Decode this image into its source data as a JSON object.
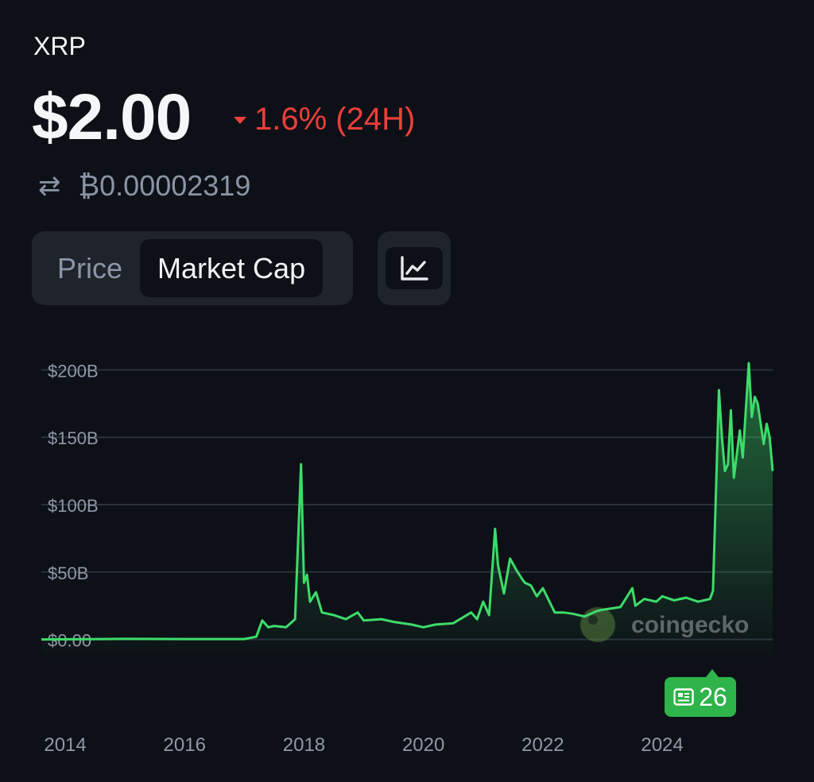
{
  "header": {
    "symbol": "XRP",
    "price": "$2.00",
    "change": "1.6% (24H)",
    "change_direction": "down",
    "btc_price": "₿0.00002319"
  },
  "tabs": [
    {
      "label": "Price",
      "active": false
    },
    {
      "label": "Market Cap",
      "active": true
    }
  ],
  "chart_type_button": {
    "icon": "line-chart-icon"
  },
  "watermark": "coingecko",
  "news_badge": {
    "icon": "newspaper-icon",
    "count": "26"
  },
  "colors": {
    "background": "#0d1117",
    "line": "#3ddc6a",
    "negative": "#ee3f3a",
    "badge": "#2fb34b"
  },
  "chart_data": {
    "type": "area",
    "title": "",
    "xlabel": "",
    "ylabel": "",
    "y_unit": "USD market cap (billions)",
    "ylim": [
      -15,
      215
    ],
    "y_ticks": [
      0,
      50,
      100,
      150,
      200
    ],
    "y_tick_labels": [
      "$0.00",
      "$50B",
      "$100B",
      "$150B",
      "$200B"
    ],
    "x_ticks": [
      2014,
      2016,
      2018,
      2020,
      2022,
      2024
    ],
    "x_tick_labels": [
      "2014",
      "2016",
      "2018",
      "2020",
      "2022",
      "2024"
    ],
    "xlim": [
      2013.6,
      2025.85
    ],
    "grid": true,
    "series": [
      {
        "x": [
          2013.6,
          2015.0,
          2016.0,
          2017.0,
          2017.2,
          2017.3,
          2017.4,
          2017.5,
          2017.7,
          2017.85,
          2017.95,
          2018.0,
          2018.05,
          2018.1,
          2018.2,
          2018.3,
          2018.5,
          2018.7,
          2018.9,
          2019.0,
          2019.3,
          2019.5,
          2019.8,
          2020.0,
          2020.2,
          2020.5,
          2020.8,
          2020.9,
          2021.0,
          2021.1,
          2021.2,
          2021.25,
          2021.35,
          2021.45,
          2021.55,
          2021.65,
          2021.7,
          2021.8,
          2021.9,
          2022.0,
          2022.2,
          2022.35,
          2022.5,
          2022.7,
          2022.9,
          2023.0,
          2023.3,
          2023.5,
          2023.55,
          2023.7,
          2023.9,
          2024.0,
          2024.2,
          2024.4,
          2024.6,
          2024.8,
          2024.85,
          2024.9,
          2024.95,
          2025.0,
          2025.05,
          2025.1,
          2025.15,
          2025.2,
          2025.3,
          2025.35,
          2025.45,
          2025.5,
          2025.55,
          2025.6,
          2025.7,
          2025.75,
          2025.8,
          2025.85
        ],
        "y": [
          0,
          0.4,
          0.3,
          0.3,
          2,
          14,
          9,
          10,
          9,
          15,
          130,
          42,
          48,
          28,
          35,
          20,
          18,
          15,
          20,
          14,
          15,
          13,
          11,
          9,
          11,
          12,
          20,
          15,
          28,
          18,
          82,
          55,
          34,
          60,
          52,
          45,
          42,
          40,
          32,
          38,
          20,
          20,
          19,
          17,
          21,
          22,
          24,
          38,
          25,
          30,
          28,
          32,
          29,
          31,
          28,
          30,
          36,
          110,
          185,
          150,
          125,
          130,
          170,
          120,
          155,
          135,
          205,
          165,
          180,
          175,
          145,
          160,
          150,
          125
        ]
      }
    ]
  }
}
